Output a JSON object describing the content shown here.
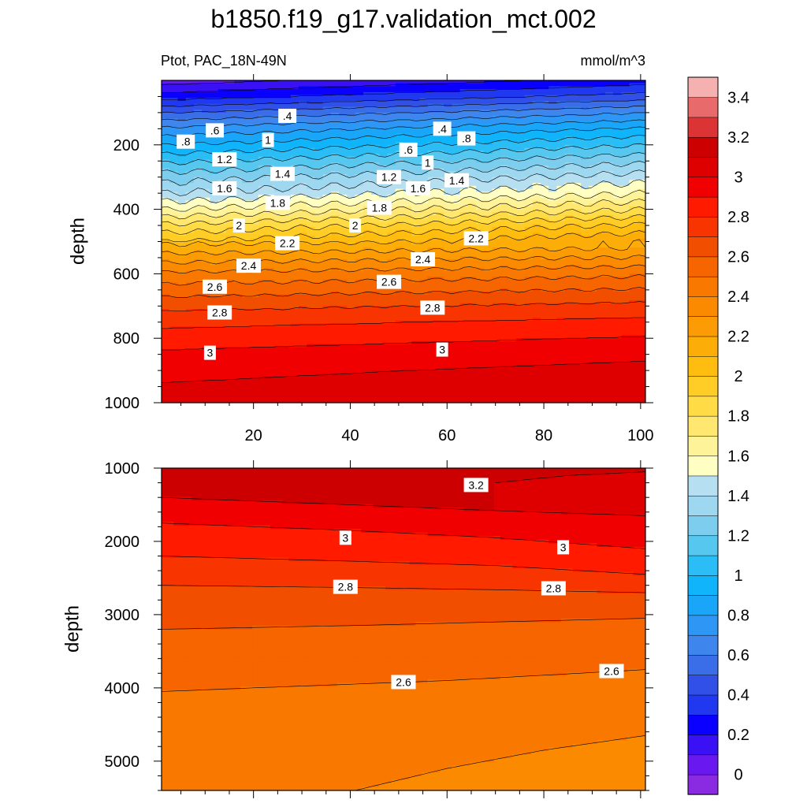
{
  "figure": {
    "title": "b1850.f19_g17.validation_mct.002",
    "subtitle_left": "Ptot, PAC_18N-49N",
    "subtitle_right": "mmol/m^3"
  },
  "chart_data": [
    {
      "type": "contour",
      "panel": "upper",
      "variable": "Ptot",
      "region": "PAC_18N-49N",
      "units": "mmol/m^3",
      "xlabel": "",
      "ylabel": "depth",
      "xlim": [
        1,
        101
      ],
      "ylim": [
        1000,
        0
      ],
      "x_ticks": [
        20,
        40,
        60,
        80,
        100
      ],
      "y_ticks": [
        200,
        400,
        600,
        800,
        1000
      ],
      "profile_depth": [
        0,
        50,
        100,
        150,
        200,
        250,
        300,
        350,
        380,
        400,
        450,
        500,
        550,
        600,
        650,
        700,
        750,
        800,
        850,
        900,
        950,
        1000
      ],
      "profile_value": [
        0.25,
        0.45,
        0.7,
        0.92,
        1.1,
        1.28,
        1.45,
        1.6,
        1.72,
        1.8,
        2.02,
        2.2,
        2.38,
        2.55,
        2.68,
        2.8,
        2.9,
        2.98,
        3.05,
        3.1,
        3.14,
        3.17
      ],
      "x_gradient": 0.1,
      "contour_labels": [
        {
          "text": ".4",
          "x": 27,
          "depth": 110
        },
        {
          "text": ".6",
          "x": 12,
          "depth": 155
        },
        {
          "text": ".8",
          "x": 6,
          "depth": 190
        },
        {
          "text": "1",
          "x": 23,
          "depth": 185
        },
        {
          "text": "1.2",
          "x": 14,
          "depth": 245
        },
        {
          "text": "1.4",
          "x": 26,
          "depth": 290
        },
        {
          "text": "1.6",
          "x": 14,
          "depth": 335
        },
        {
          "text": "1.8",
          "x": 25,
          "depth": 380
        },
        {
          "text": "2",
          "x": 17,
          "depth": 450
        },
        {
          "text": "2.2",
          "x": 27,
          "depth": 505
        },
        {
          "text": "2.4",
          "x": 19,
          "depth": 575
        },
        {
          "text": "2.6",
          "x": 12,
          "depth": 640
        },
        {
          "text": "2.8",
          "x": 13,
          "depth": 720
        },
        {
          "text": "3",
          "x": 11,
          "depth": 845
        },
        {
          "text": ".4",
          "x": 59,
          "depth": 150
        },
        {
          "text": ".6",
          "x": 52,
          "depth": 215
        },
        {
          "text": "1",
          "x": 56,
          "depth": 255
        },
        {
          "text": ".8",
          "x": 64,
          "depth": 180
        },
        {
          "text": "1.2",
          "x": 48,
          "depth": 300
        },
        {
          "text": "1.4",
          "x": 62,
          "depth": 310
        },
        {
          "text": "1.6",
          "x": 54,
          "depth": 335
        },
        {
          "text": "1.8",
          "x": 46,
          "depth": 395
        },
        {
          "text": "2",
          "x": 41,
          "depth": 450
        },
        {
          "text": "2.2",
          "x": 66,
          "depth": 490
        },
        {
          "text": "2.4",
          "x": 55,
          "depth": 555
        },
        {
          "text": "2.6",
          "x": 48,
          "depth": 625
        },
        {
          "text": "2.8",
          "x": 57,
          "depth": 705
        },
        {
          "text": "3",
          "x": 59,
          "depth": 835
        }
      ]
    },
    {
      "type": "contour",
      "panel": "lower",
      "variable": "Ptot",
      "region": "PAC_18N-49N",
      "units": "mmol/m^3",
      "xlabel": "",
      "ylabel": "depth",
      "xlim": [
        1,
        101
      ],
      "ylim": [
        5400,
        1000
      ],
      "x_ticks": [
        20,
        40,
        60,
        80,
        100
      ],
      "y_ticks": [
        1000,
        2000,
        3000,
        4000,
        5000
      ],
      "contours": [
        {
          "level": 3.2,
          "x": [
            70,
            85,
            101
          ],
          "depth": [
            1200,
            1100,
            1050
          ]
        },
        {
          "level": 3.1,
          "x": [
            1,
            40,
            70,
            101
          ],
          "depth": [
            1400,
            1500,
            1580,
            1650
          ]
        },
        {
          "level": 3.0,
          "x": [
            1,
            40,
            70,
            101
          ],
          "depth": [
            1750,
            1850,
            1950,
            2100
          ]
        },
        {
          "level": 2.9,
          "x": [
            1,
            40,
            70,
            101
          ],
          "depth": [
            2200,
            2270,
            2330,
            2450
          ]
        },
        {
          "level": 2.8,
          "x": [
            1,
            40,
            70,
            101
          ],
          "depth": [
            2600,
            2630,
            2660,
            2700
          ]
        },
        {
          "level": 2.7,
          "x": [
            1,
            40,
            70,
            101
          ],
          "depth": [
            3200,
            3150,
            3100,
            3050
          ]
        },
        {
          "level": 2.6,
          "x": [
            1,
            20,
            60,
            101
          ],
          "depth": [
            4050,
            4000,
            3900,
            3750
          ]
        },
        {
          "level": 2.5,
          "x": [
            41,
            60,
            80,
            101
          ],
          "depth": [
            5400,
            5100,
            4850,
            4650
          ]
        }
      ],
      "contour_labels": [
        {
          "text": "3.2",
          "x": 66,
          "depth": 1230
        },
        {
          "text": "3",
          "x": 39,
          "depth": 1950
        },
        {
          "text": "3",
          "x": 84,
          "depth": 2080
        },
        {
          "text": "2.8",
          "x": 39,
          "depth": 2620
        },
        {
          "text": "2.8",
          "x": 82,
          "depth": 2640
        },
        {
          "text": "2.6",
          "x": 51,
          "depth": 3920
        },
        {
          "text": "2.6",
          "x": 94,
          "depth": 3770
        }
      ]
    }
  ],
  "colorbar": {
    "tick_labels": [
      "0",
      "0.2",
      "0.4",
      "0.6",
      "0.8",
      "1",
      "1.2",
      "1.4",
      "1.6",
      "1.8",
      "2",
      "2.2",
      "2.4",
      "2.6",
      "2.8",
      "3",
      "3.2",
      "3.4"
    ],
    "levels": [
      0,
      0.1,
      0.2,
      0.3,
      0.4,
      0.5,
      0.6,
      0.7,
      0.8,
      0.9,
      1.0,
      1.1,
      1.2,
      1.3,
      1.4,
      1.5,
      1.6,
      1.7,
      1.8,
      1.9,
      2.0,
      2.1,
      2.2,
      2.3,
      2.4,
      2.5,
      2.6,
      2.7,
      2.8,
      2.9,
      3.0,
      3.1,
      3.2,
      3.3,
      3.4,
      3.5
    ],
    "colors": [
      "#8a2be2",
      "#6a18f0",
      "#3a10f5",
      "#0a00ff",
      "#2038ef",
      "#3050e8",
      "#3a6ee8",
      "#3e86ee",
      "#2e96f5",
      "#1aa6f8",
      "#10b4fa",
      "#2bbdf5",
      "#56c8f0",
      "#7ccdee",
      "#9dd7f0",
      "#b7dff2",
      "#ffffc4",
      "#fff39a",
      "#ffe770",
      "#ffdc46",
      "#ffcd25",
      "#ffbd10",
      "#fcad08",
      "#fc9b03",
      "#fb8a00",
      "#f87800",
      "#f66500",
      "#f24e00",
      "#f83400",
      "#ff1a00",
      "#f00000",
      "#de0000",
      "#cc0000",
      "#dc3434",
      "#e86a6a",
      "#f5b0b0"
    ]
  }
}
